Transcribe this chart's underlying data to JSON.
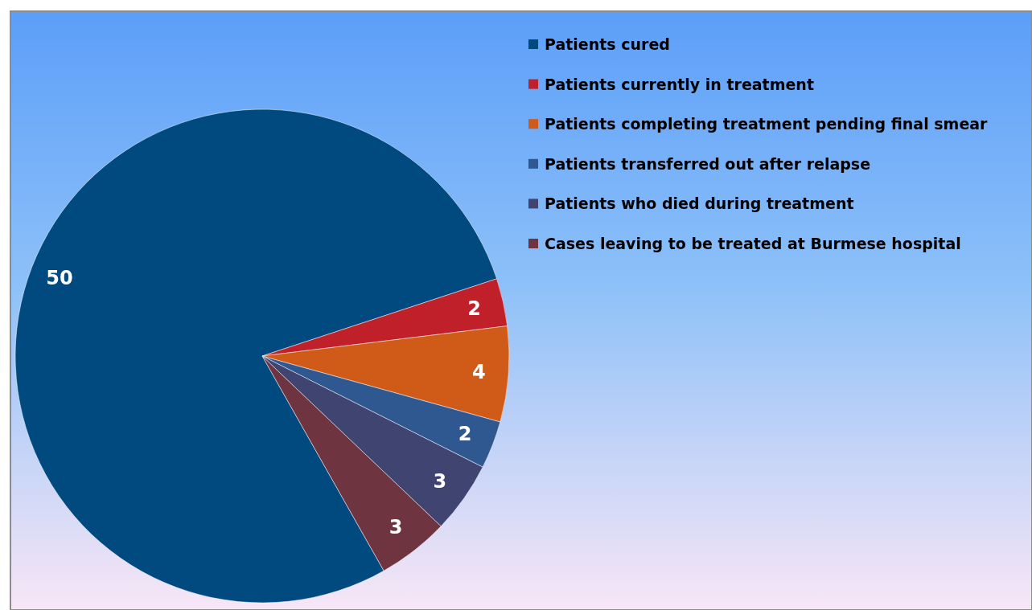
{
  "chart_data": {
    "type": "pie",
    "categories": [
      "Patients cured",
      "Patients currently in treatment",
      "Patients completing treatment pending final smear",
      "Patients transferred out after relapse",
      "Patients who died during treatment",
      "Cases leaving to be treated at Burmese hospital"
    ],
    "values": [
      50,
      2,
      4,
      2,
      3,
      3
    ],
    "colors": [
      "#004a80",
      "#c0202a",
      "#d05a18",
      "#2f5890",
      "#3f4470",
      "#6e3540"
    ],
    "data_labels": true,
    "legend": "top right"
  }
}
